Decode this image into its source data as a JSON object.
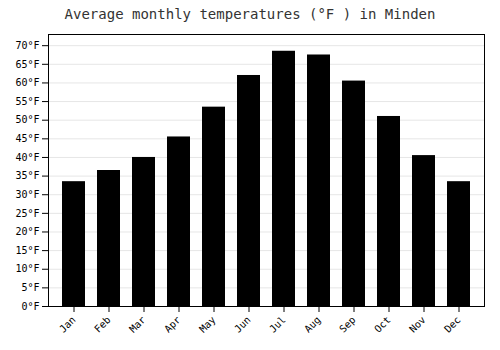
{
  "chart_data": {
    "type": "bar",
    "title": "Average monthly temperatures (°F ) in Minden",
    "categories": [
      "Jan",
      "Feb",
      "Mar",
      "Apr",
      "May",
      "Jun",
      "Jul",
      "Aug",
      "Sep",
      "Oct",
      "Nov",
      "Dec"
    ],
    "values": [
      33.5,
      36.5,
      40.0,
      45.5,
      53.5,
      62.0,
      68.5,
      67.5,
      60.5,
      51.0,
      40.5,
      33.5
    ],
    "ylim": [
      0,
      73
    ],
    "yticks": [
      {
        "value": 0,
        "label": "0°F"
      },
      {
        "value": 5,
        "label": "5°F"
      },
      {
        "value": 10,
        "label": "10°F"
      },
      {
        "value": 15,
        "label": "15°F"
      },
      {
        "value": 20,
        "label": "20°F"
      },
      {
        "value": 25,
        "label": "25°F"
      },
      {
        "value": 30,
        "label": "30°F"
      },
      {
        "value": 35,
        "label": "35°F"
      },
      {
        "value": 40,
        "label": "40°F"
      },
      {
        "value": 45,
        "label": "45°F"
      },
      {
        "value": 50,
        "label": "50°F"
      },
      {
        "value": 55,
        "label": "55°F"
      },
      {
        "value": 60,
        "label": "60°F"
      },
      {
        "value": 65,
        "label": "65°F"
      },
      {
        "value": 70,
        "label": "70°F"
      }
    ],
    "grid": true
  }
}
